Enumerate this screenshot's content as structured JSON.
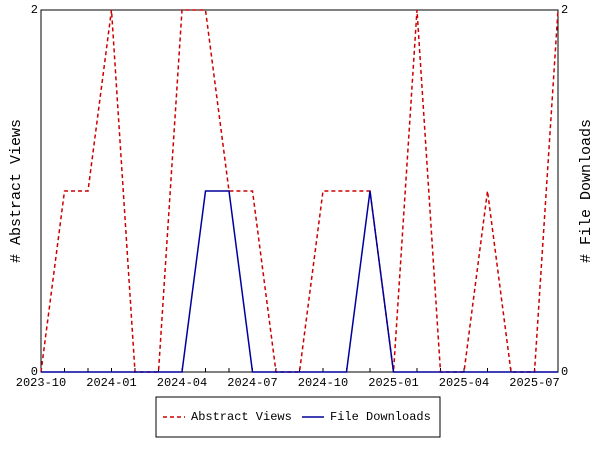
{
  "chart_data": {
    "type": "line",
    "categories": [
      "2023-10",
      null,
      null,
      "2024-01",
      null,
      null,
      "2024-04",
      null,
      null,
      "2024-07",
      null,
      null,
      "2024-10",
      null,
      null,
      "2025-01",
      null,
      null,
      "2025-04",
      null,
      null,
      "2025-07",
      null
    ],
    "series": [
      {
        "name": "Abstract Views",
        "color": "#cc0000",
        "dash": true,
        "axis": "y",
        "values": [
          0,
          1,
          1,
          2,
          0,
          0,
          2,
          2,
          1,
          1,
          0,
          0,
          1,
          1,
          1,
          0,
          2,
          0,
          0,
          1,
          0,
          0,
          2
        ]
      },
      {
        "name": "File Downloads",
        "color": "#00009c",
        "dash": false,
        "axis": "y2",
        "values": [
          0,
          0,
          0,
          0,
          0,
          0,
          0,
          1,
          1,
          0,
          0,
          0,
          0,
          0,
          1,
          0,
          0,
          0,
          0,
          0,
          0,
          0,
          0
        ]
      }
    ],
    "ylabel": "# Abstract Views",
    "y2label": "# File Downloads",
    "ylim": [
      0,
      2
    ],
    "yticks": [
      0,
      2
    ],
    "y2lim": [
      0,
      2
    ],
    "y2ticks": [
      0,
      2
    ],
    "legend": "bottom"
  }
}
